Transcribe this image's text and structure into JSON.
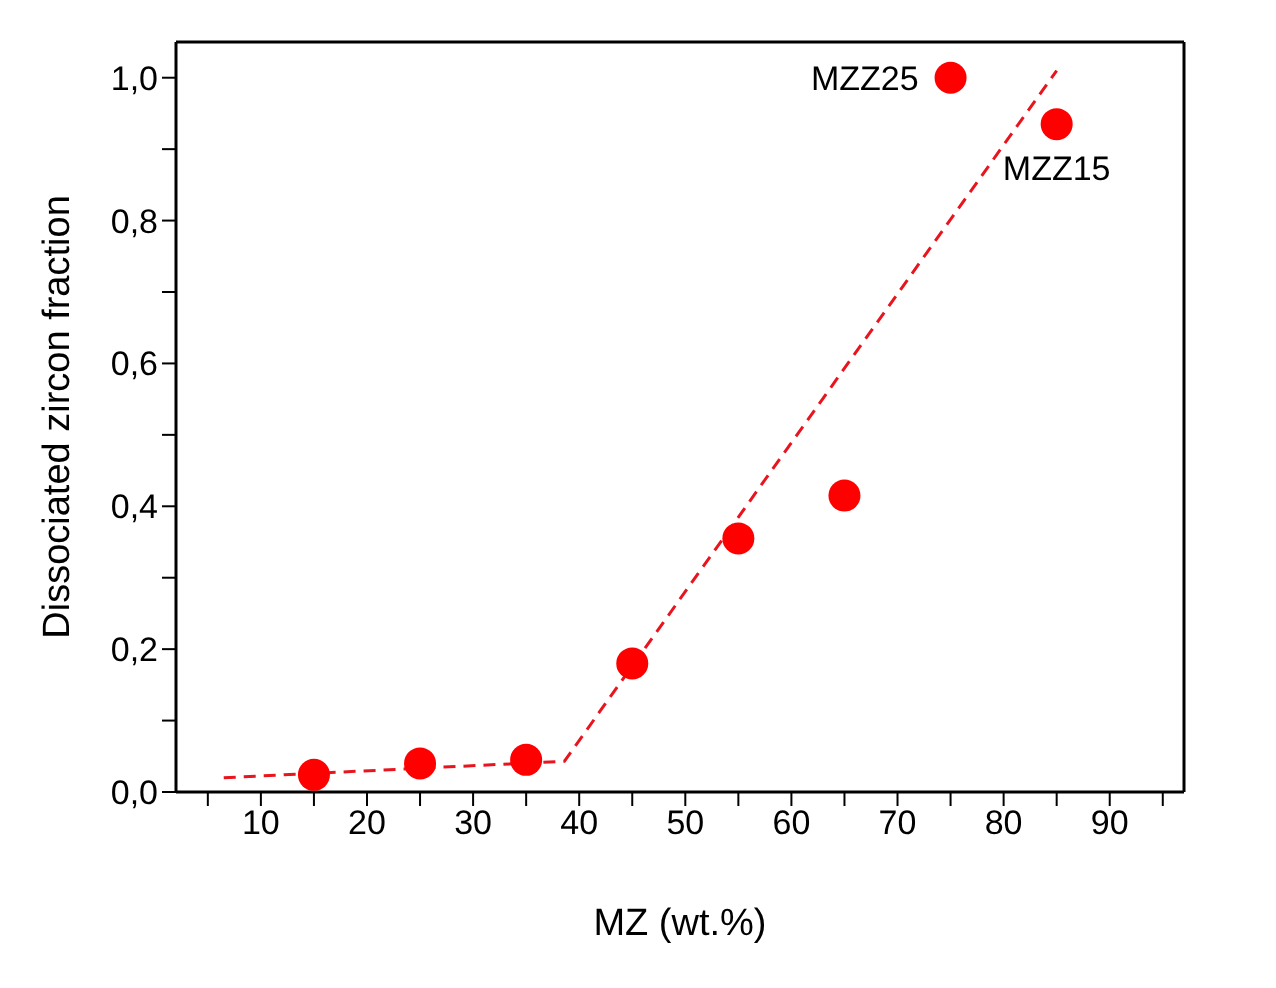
{
  "chart_data": {
    "type": "scatter",
    "xlabel": "MZ (wt.%)",
    "ylabel": "Dissociated zircon fraction",
    "xlim": [
      2,
      97
    ],
    "ylim": [
      0,
      1.05
    ],
    "xticks": [
      {
        "value": 5,
        "label": null
      },
      10,
      {
        "value": 15,
        "label": null
      },
      20,
      {
        "value": 25,
        "label": null
      },
      30,
      {
        "value": 35,
        "label": null
      },
      40,
      {
        "value": 45,
        "label": null
      },
      50,
      {
        "value": 55,
        "label": null
      },
      60,
      {
        "value": 65,
        "label": null
      },
      70,
      {
        "value": 75,
        "label": null
      },
      80,
      {
        "value": 85,
        "label": null
      },
      90,
      {
        "value": 95,
        "label": null
      }
    ],
    "yticks": [
      {
        "value": 0,
        "label": "0,0"
      },
      {
        "value": 0.1,
        "label": null
      },
      {
        "value": 0.2,
        "label": "0,2"
      },
      {
        "value": 0.3,
        "label": null
      },
      {
        "value": 0.4,
        "label": "0,4"
      },
      {
        "value": 0.5,
        "label": null
      },
      {
        "value": 0.6,
        "label": "0,6"
      },
      {
        "value": 0.7,
        "label": null
      },
      {
        "value": 0.8,
        "label": "0,8"
      },
      {
        "value": 0.9,
        "label": null
      },
      {
        "value": 1.0,
        "label": "1,0"
      }
    ],
    "marker": "circle",
    "grid": false,
    "legend": false,
    "series": [
      {
        "color": "#ff0000",
        "x": [
          15,
          25,
          35,
          45,
          55,
          65,
          75,
          85
        ],
        "values": [
          0.024,
          0.04,
          0.045,
          0.18,
          0.355,
          0.415,
          1.0,
          0.935
        ]
      },
      {
        "type": "line",
        "color": "#e8141e",
        "line_style": "dashed",
        "marker": "none",
        "x": [
          6.5,
          38.6,
          85
        ],
        "values": [
          0.02,
          0.043,
          1.01
        ]
      }
    ],
    "annotations": [
      {
        "text": "MZZ25",
        "x": 75,
        "y": 1.0
      },
      {
        "text": "MZZ15",
        "x": 85,
        "y": 0.935
      }
    ]
  }
}
